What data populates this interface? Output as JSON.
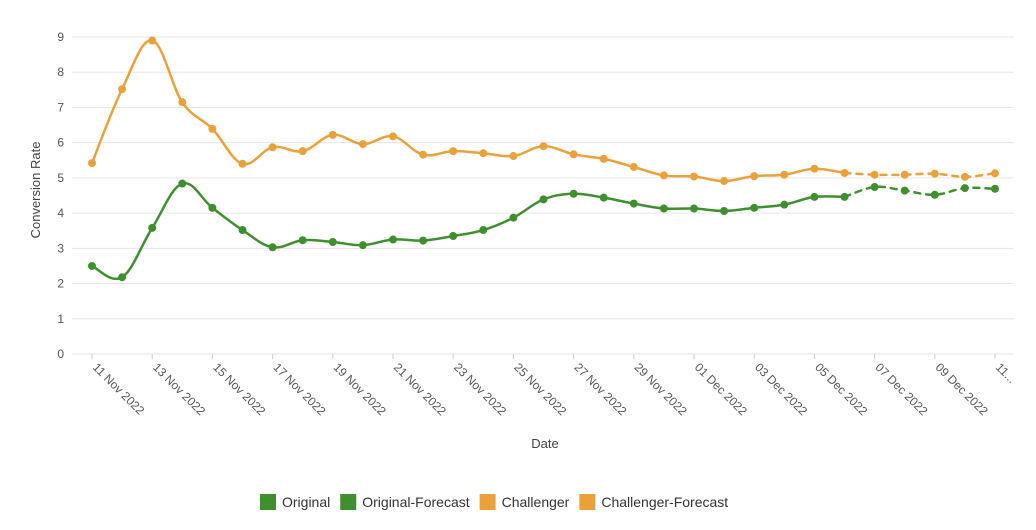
{
  "chart_data": {
    "type": "line",
    "title": "",
    "xlabel": "Date",
    "ylabel": "Conversion Rate",
    "ylim": [
      0,
      9
    ],
    "yticks": [
      "0",
      "1",
      "2",
      "3",
      "4",
      "5",
      "6",
      "7",
      "8",
      "9"
    ],
    "x_tick_labels": [
      "11 Nov 2022",
      "13 Nov 2022",
      "15 Nov 2022",
      "17 Nov 2022",
      "19 Nov 2022",
      "21 Nov 2022",
      "23 Nov 2022",
      "25 Nov 2022",
      "27 Nov 2022",
      "29 Nov 2022",
      "01 Dec 2022",
      "03 Dec 2022",
      "05 Dec 2022",
      "07 Dec 2022",
      "09 Dec 2022",
      "11..."
    ],
    "grid": true,
    "legend_position": "bottom",
    "series": [
      {
        "name": "Original",
        "color": "#3f8f2f",
        "style": "solid",
        "start_index": 0,
        "values": [
          2.5,
          2.18,
          3.58,
          4.84,
          4.15,
          3.52,
          3.03,
          3.23,
          3.18,
          3.09,
          3.25,
          3.22,
          3.35,
          3.52,
          3.87,
          4.39,
          4.55,
          4.44,
          4.27,
          4.13,
          4.13,
          4.06,
          4.15,
          4.24,
          4.46,
          4.46
        ]
      },
      {
        "name": "Original-Forecast",
        "color": "#3f8f2f",
        "style": "dashed",
        "start_index": 25,
        "values": [
          4.46,
          4.74,
          4.64,
          4.52,
          4.71,
          4.69
        ]
      },
      {
        "name": "Challenger",
        "color": "#e9a23b",
        "style": "solid",
        "start_index": 0,
        "values": [
          5.42,
          7.52,
          8.9,
          7.15,
          6.39,
          5.4,
          5.87,
          5.76,
          6.22,
          5.96,
          6.18,
          5.66,
          5.76,
          5.7,
          5.62,
          5.9,
          5.67,
          5.54,
          5.31,
          5.07,
          5.04,
          4.91,
          5.05,
          5.09,
          5.26,
          5.14
        ]
      },
      {
        "name": "Challenger-Forecast",
        "color": "#e9a23b",
        "style": "dashed",
        "start_index": 25,
        "values": [
          5.14,
          5.09,
          5.09,
          5.12,
          5.03,
          5.13
        ]
      }
    ]
  }
}
